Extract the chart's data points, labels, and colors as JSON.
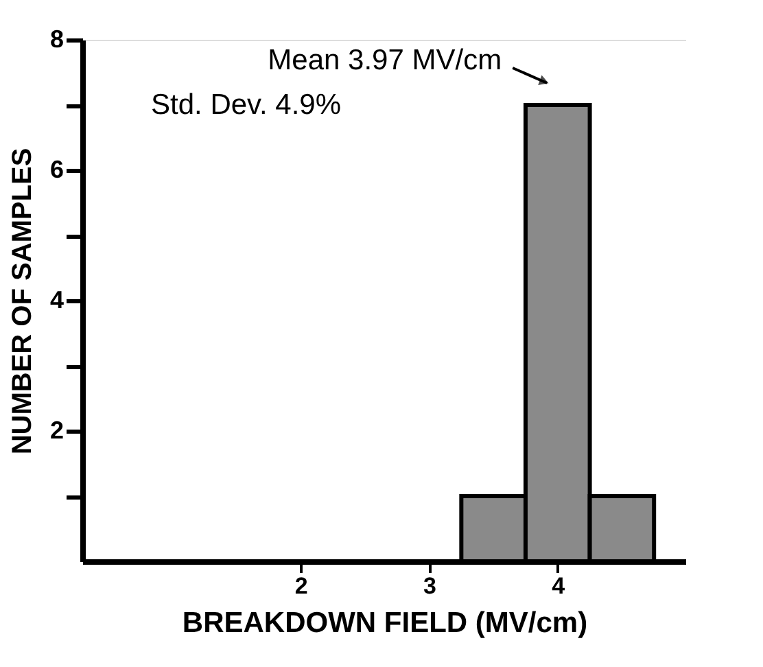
{
  "chart_data": {
    "type": "histogram",
    "bins": [
      3.25,
      3.75,
      4.25,
      4.75
    ],
    "values": [
      1,
      7,
      1
    ],
    "color": "#8a8a8a",
    "xlabel": "BREAKDOWN FIELD  (MV/cm)",
    "ylabel": "NUMBER OF SAMPLES",
    "xlim": [
      0.3,
      5.0
    ],
    "xticks": [
      2,
      3,
      4
    ],
    "ylim": [
      0,
      8
    ],
    "yticks": [
      {
        "value": 1,
        "label": null
      },
      2,
      {
        "value": 3,
        "label": null
      },
      4,
      {
        "value": 5,
        "label": null
      },
      6,
      {
        "value": 7,
        "label": null
      },
      8
    ],
    "grid": false,
    "annotations": [
      {
        "text": "Mean 3.97 MV/cm",
        "x": 3.97,
        "y": 7
      },
      "Std. Dev.   4.9%"
    ]
  }
}
